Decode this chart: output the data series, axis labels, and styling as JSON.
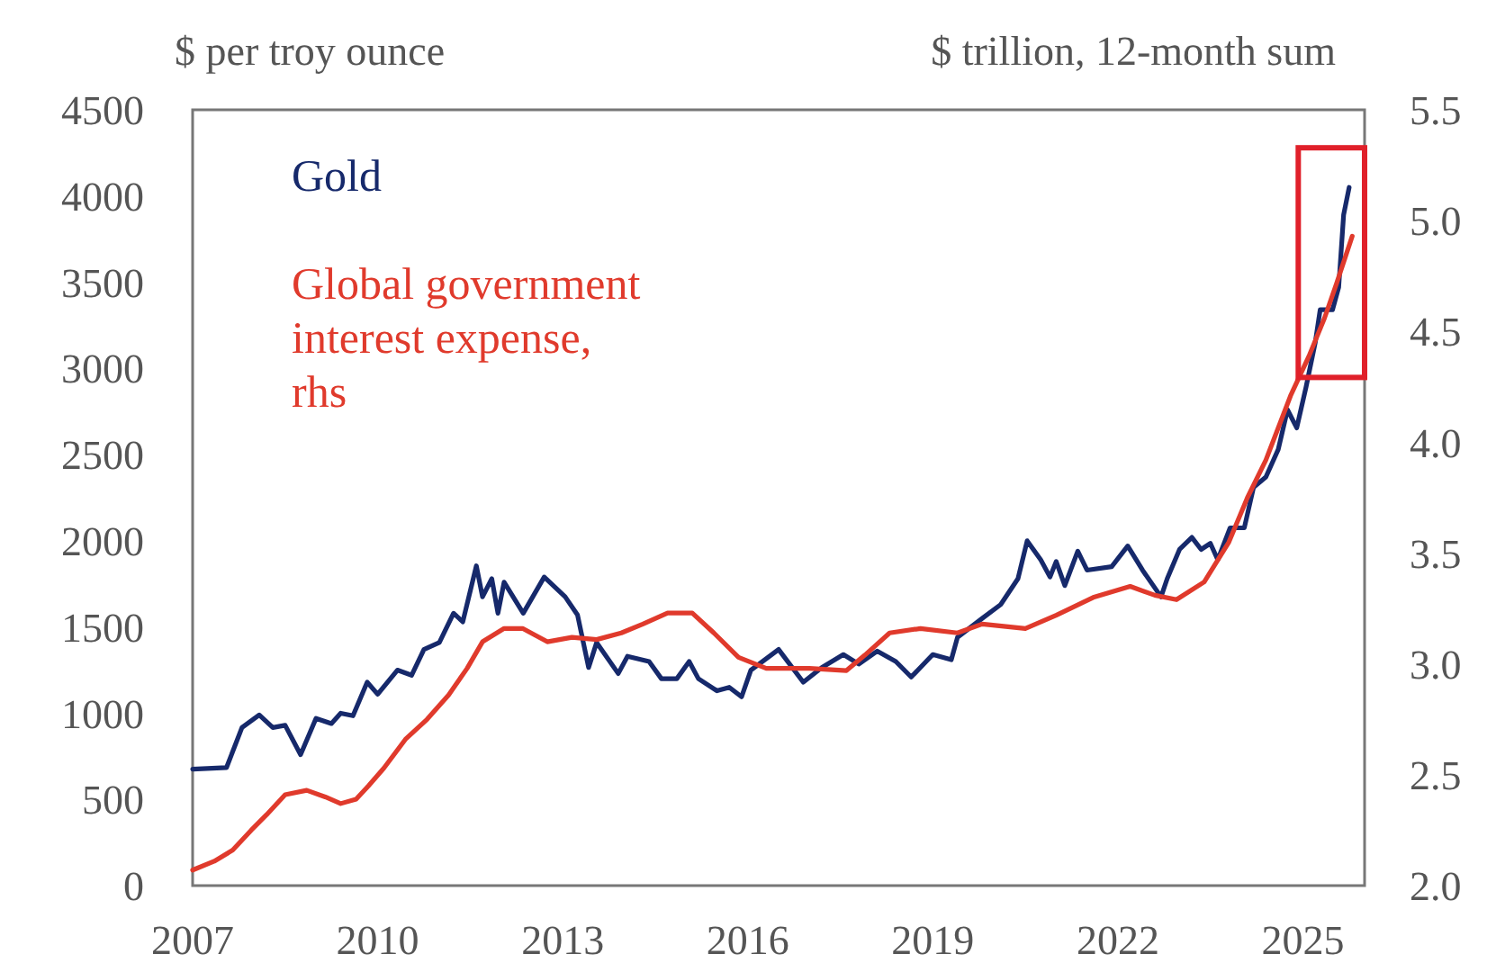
{
  "chart_data": {
    "type": "line",
    "ylabel": "$ per troy ounce",
    "y2label": "$ trillion, 12-month sum",
    "xlim": [
      2007,
      2026
    ],
    "xticks": [
      2007,
      2010,
      2013,
      2016,
      2019,
      2022,
      2025
    ],
    "ylim": [
      0,
      4500
    ],
    "yticks": [
      0,
      500,
      1000,
      1500,
      2000,
      2500,
      3000,
      3500,
      4000,
      4500
    ],
    "y2lim": [
      2,
      5.5
    ],
    "y2ticks": [
      {
        "value": 2,
        "label": "2.0"
      },
      {
        "value": 2.5,
        "label": "2.5"
      },
      {
        "value": 3,
        "label": "3.0"
      },
      {
        "value": 3.5,
        "label": "3.5"
      },
      {
        "value": 4,
        "label": "4.0"
      },
      {
        "value": 4.5,
        "label": "4.5"
      },
      {
        "value": 5,
        "label": "5.0"
      },
      {
        "value": 5.5,
        "label": "5.5"
      }
    ],
    "grid": false,
    "legend": "top left",
    "marker": "none",
    "line_style": "solid",
    "series": [
      {
        "name": "Gold",
        "color": "#16296b",
        "x": [
          2007.0,
          2007.55,
          2007.8,
          2008.08,
          2008.3,
          2008.5,
          2008.75,
          2009.0,
          2009.25,
          2009.4,
          2009.6,
          2009.83,
          2010.0,
          2010.32,
          2010.55,
          2010.75,
          2011.0,
          2011.23,
          2011.38,
          2011.6,
          2011.7,
          2011.85,
          2011.95,
          2012.05,
          2012.36,
          2012.7,
          2013.04,
          2013.24,
          2013.42,
          2013.55,
          2013.9,
          2014.05,
          2014.4,
          2014.6,
          2014.85,
          2015.05,
          2015.2,
          2015.5,
          2015.7,
          2015.9,
          2016.05,
          2016.5,
          2016.9,
          2017.2,
          2017.55,
          2017.8,
          2018.1,
          2018.4,
          2018.65,
          2019.0,
          2019.3,
          2019.4,
          2019.8,
          2020.1,
          2020.38,
          2020.53,
          2020.75,
          2020.9,
          2021.0,
          2021.14,
          2021.35,
          2021.5,
          2021.9,
          2022.16,
          2022.4,
          2022.7,
          2022.8,
          2023.0,
          2023.2,
          2023.35,
          2023.5,
          2023.62,
          2023.82,
          2024.05,
          2024.2,
          2024.4,
          2024.6,
          2024.75,
          2024.9,
          2025.05,
          2025.2,
          2025.28,
          2025.48,
          2025.58,
          2025.66,
          2025.75
        ],
        "values": [
          675,
          685,
          917,
          990,
          917,
          930,
          760,
          970,
          940,
          1000,
          985,
          1180,
          1110,
          1250,
          1220,
          1370,
          1410,
          1580,
          1530,
          1855,
          1675,
          1780,
          1580,
          1760,
          1580,
          1790,
          1675,
          1570,
          1265,
          1410,
          1230,
          1330,
          1300,
          1200,
          1200,
          1300,
          1200,
          1130,
          1150,
          1095,
          1250,
          1370,
          1180,
          1265,
          1340,
          1285,
          1360,
          1300,
          1210,
          1340,
          1310,
          1440,
          1550,
          1630,
          1780,
          2000,
          1890,
          1790,
          1880,
          1740,
          1940,
          1830,
          1850,
          1970,
          1830,
          1675,
          1780,
          1950,
          2020,
          1950,
          1985,
          1890,
          2075,
          2075,
          2310,
          2370,
          2530,
          2760,
          2655,
          2890,
          3150,
          3340,
          3340,
          3470,
          3890,
          4050
        ]
      },
      {
        "name": "Global government interest expense, rhs",
        "color": "#e03a2c",
        "axis": "y2",
        "x": [
          2007.0,
          2007.35,
          2007.65,
          2007.95,
          2008.2,
          2008.5,
          2008.85,
          2009.15,
          2009.4,
          2009.65,
          2009.85,
          2010.1,
          2010.45,
          2010.8,
          2011.15,
          2011.45,
          2011.7,
          2012.05,
          2012.35,
          2012.75,
          2013.15,
          2013.55,
          2013.95,
          2014.3,
          2014.7,
          2015.1,
          2015.45,
          2015.85,
          2016.3,
          2016.5,
          2017.0,
          2017.6,
          2017.9,
          2018.3,
          2018.8,
          2019.4,
          2019.8,
          2020.5,
          2021.0,
          2021.6,
          2022.2,
          2022.6,
          2022.95,
          2023.4,
          2023.8,
          2024.1,
          2024.4,
          2024.8,
          2025.1,
          2025.35,
          2025.55,
          2025.8
        ],
        "values": [
          2.07,
          2.11,
          2.16,
          2.25,
          2.32,
          2.41,
          2.43,
          2.4,
          2.37,
          2.39,
          2.45,
          2.53,
          2.66,
          2.75,
          2.86,
          2.98,
          3.1,
          3.16,
          3.16,
          3.1,
          3.12,
          3.11,
          3.14,
          3.18,
          3.23,
          3.23,
          3.14,
          3.03,
          2.98,
          2.98,
          2.98,
          2.97,
          3.04,
          3.14,
          3.16,
          3.14,
          3.18,
          3.16,
          3.22,
          3.3,
          3.35,
          3.31,
          3.29,
          3.37,
          3.55,
          3.75,
          3.92,
          4.21,
          4.39,
          4.56,
          4.72,
          4.93
        ]
      }
    ]
  }
}
